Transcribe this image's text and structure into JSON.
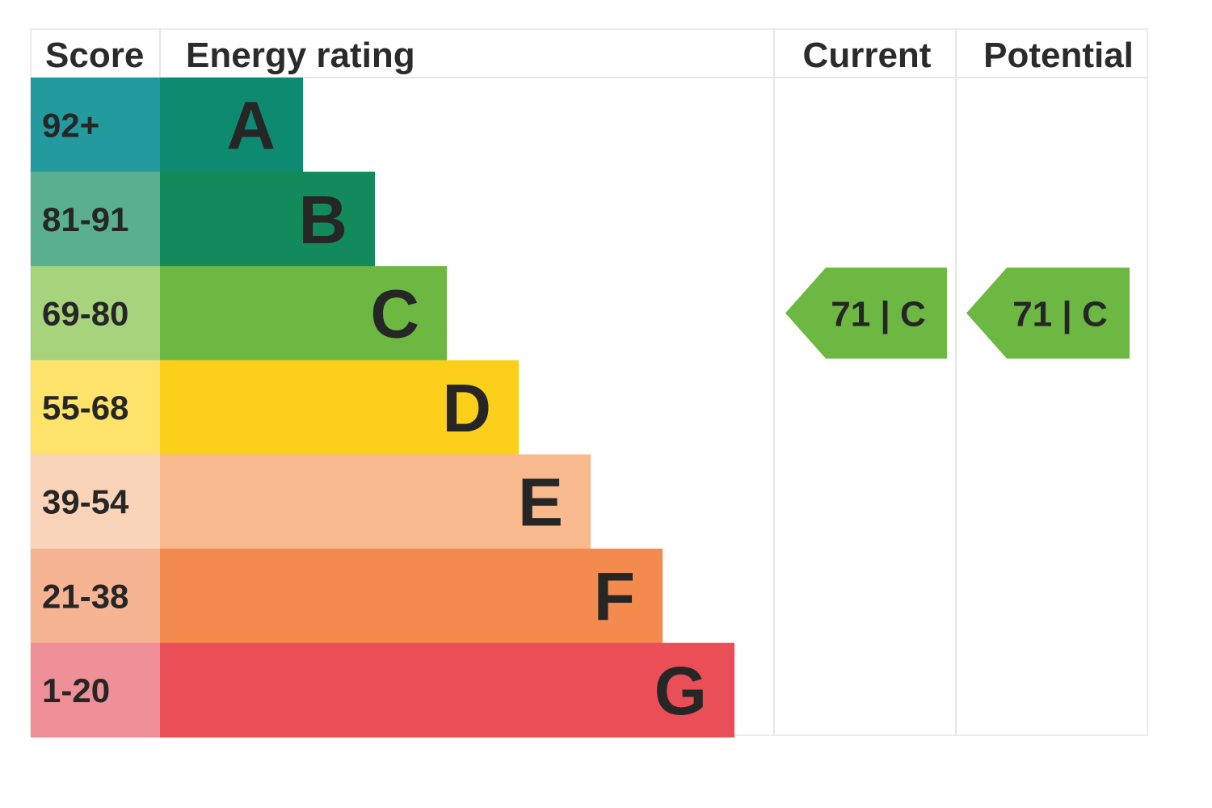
{
  "headers": {
    "score": "Score",
    "energy_rating": "Energy rating",
    "current": "Current",
    "potential": "Potential"
  },
  "chart_data": {
    "type": "bar",
    "categories": [
      "A",
      "B",
      "C",
      "D",
      "E",
      "F",
      "G"
    ],
    "bands": [
      {
        "score": "92+",
        "letter": "A",
        "color": "#0e8a70",
        "score_color": "#239b9e"
      },
      {
        "score": "81-91",
        "letter": "B",
        "color": "#138a5c",
        "score_color": "#5aaf90"
      },
      {
        "score": "69-80",
        "letter": "C",
        "color": "#6cb842",
        "score_color": "#a6d37c"
      },
      {
        "score": "55-68",
        "letter": "D",
        "color": "#fcd01a",
        "score_color": "#fde36a"
      },
      {
        "score": "39-54",
        "letter": "E",
        "color": "#f8b98c",
        "score_color": "#f9d4b8"
      },
      {
        "score": "21-38",
        "letter": "F",
        "color": "#f38a4e",
        "score_color": "#f6b493"
      },
      {
        "score": "1-20",
        "letter": "G",
        "color": "#ea4f57",
        "score_color": "#ef8f97"
      }
    ],
    "current": {
      "value": 71,
      "band": "C",
      "label": "71 | C",
      "color": "#6cb842"
    },
    "potential": {
      "value": 71,
      "band": "C",
      "label": "71 | C",
      "color": "#6cb842"
    }
  }
}
